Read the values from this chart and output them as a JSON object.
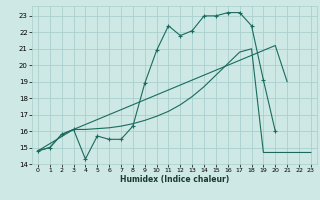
{
  "title": "",
  "xlabel": "Humidex (Indice chaleur)",
  "background_color": "#cde8e5",
  "grid_color": "#aacfcc",
  "line_color": "#1a6b5e",
  "xlim": [
    -0.5,
    23.5
  ],
  "ylim": [
    14,
    23.6
  ],
  "xticks": [
    0,
    1,
    2,
    3,
    4,
    5,
    6,
    7,
    8,
    9,
    10,
    11,
    12,
    13,
    14,
    15,
    16,
    17,
    18,
    19,
    20,
    21,
    22,
    23
  ],
  "yticks": [
    14,
    15,
    16,
    17,
    18,
    19,
    20,
    21,
    22,
    23
  ],
  "line1_x": [
    0,
    1,
    2,
    3,
    4,
    5,
    6,
    7,
    8,
    9,
    10,
    11,
    12,
    13,
    14,
    15,
    16,
    17,
    18,
    19,
    20
  ],
  "line1_y": [
    14.8,
    15.0,
    15.8,
    16.1,
    14.3,
    15.7,
    15.5,
    15.5,
    16.3,
    18.9,
    20.9,
    22.4,
    21.8,
    22.1,
    23.0,
    23.0,
    23.2,
    23.2,
    22.4,
    19.1,
    16.0
  ],
  "line2_x": [
    0,
    3,
    20,
    21
  ],
  "line2_y": [
    14.8,
    16.1,
    21.2,
    19.0
  ],
  "line3_x": [
    0,
    1,
    2,
    3,
    4,
    5,
    6,
    7,
    8,
    9,
    10,
    11,
    12,
    13,
    14,
    15,
    16,
    17,
    18,
    19,
    20,
    21,
    22,
    23
  ],
  "line3_y": [
    14.8,
    15.0,
    15.8,
    16.1,
    16.1,
    16.15,
    16.2,
    16.3,
    16.45,
    16.65,
    16.9,
    17.2,
    17.6,
    18.1,
    18.7,
    19.4,
    20.1,
    20.8,
    21.0,
    14.7,
    14.7,
    14.7,
    14.7,
    14.7
  ],
  "figsize": [
    3.2,
    2.0
  ],
  "dpi": 100
}
